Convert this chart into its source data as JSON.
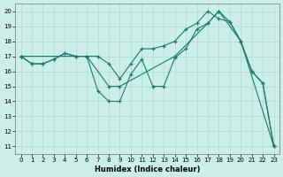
{
  "xlabel": "Humidex (Indice chaleur)",
  "bg_color": "#cceee8",
  "grid_color": "#aaddcc",
  "line_color": "#1a7a6e",
  "xlim": [
    -0.5,
    23.5
  ],
  "ylim": [
    10.5,
    20.5
  ],
  "xticks": [
    0,
    1,
    2,
    3,
    4,
    5,
    6,
    7,
    8,
    9,
    10,
    11,
    12,
    13,
    14,
    15,
    16,
    17,
    18,
    19,
    20,
    21,
    22,
    23
  ],
  "yticks": [
    11,
    12,
    13,
    14,
    15,
    16,
    17,
    18,
    19,
    20
  ],
  "series1": [
    [
      0,
      17.0
    ],
    [
      1,
      16.5
    ],
    [
      2,
      16.5
    ],
    [
      3,
      16.8
    ],
    [
      4,
      17.2
    ],
    [
      5,
      17.0
    ],
    [
      6,
      17.0
    ],
    [
      7,
      14.7
    ],
    [
      8,
      14.0
    ],
    [
      9,
      14.0
    ],
    [
      10,
      15.8
    ],
    [
      11,
      16.8
    ],
    [
      12,
      15.0
    ],
    [
      13,
      15.0
    ],
    [
      14,
      16.9
    ],
    [
      15,
      17.5
    ],
    [
      16,
      18.8
    ],
    [
      17,
      19.2
    ],
    [
      18,
      20.0
    ],
    [
      19,
      19.3
    ],
    [
      20,
      18.0
    ],
    [
      21,
      16.0
    ],
    [
      22,
      15.2
    ],
    [
      23,
      11.0
    ]
  ],
  "series2": [
    [
      0,
      17.0
    ],
    [
      1,
      16.5
    ],
    [
      2,
      16.5
    ],
    [
      3,
      16.8
    ],
    [
      4,
      17.2
    ],
    [
      5,
      17.0
    ],
    [
      6,
      17.0
    ],
    [
      7,
      17.0
    ],
    [
      8,
      16.5
    ],
    [
      9,
      15.5
    ],
    [
      10,
      16.5
    ],
    [
      11,
      17.5
    ],
    [
      12,
      17.5
    ],
    [
      13,
      17.7
    ],
    [
      14,
      18.0
    ],
    [
      15,
      18.8
    ],
    [
      16,
      19.2
    ],
    [
      17,
      20.0
    ],
    [
      18,
      19.5
    ],
    [
      19,
      19.3
    ],
    [
      20,
      18.0
    ],
    [
      21,
      16.0
    ],
    [
      22,
      15.2
    ],
    [
      23,
      11.0
    ]
  ],
  "series3": [
    [
      0,
      17.0
    ],
    [
      6,
      17.0
    ],
    [
      8,
      15.0
    ],
    [
      9,
      15.0
    ],
    [
      14,
      17.0
    ],
    [
      17,
      19.2
    ],
    [
      18,
      20.0
    ],
    [
      20,
      18.0
    ],
    [
      23,
      11.0
    ]
  ]
}
